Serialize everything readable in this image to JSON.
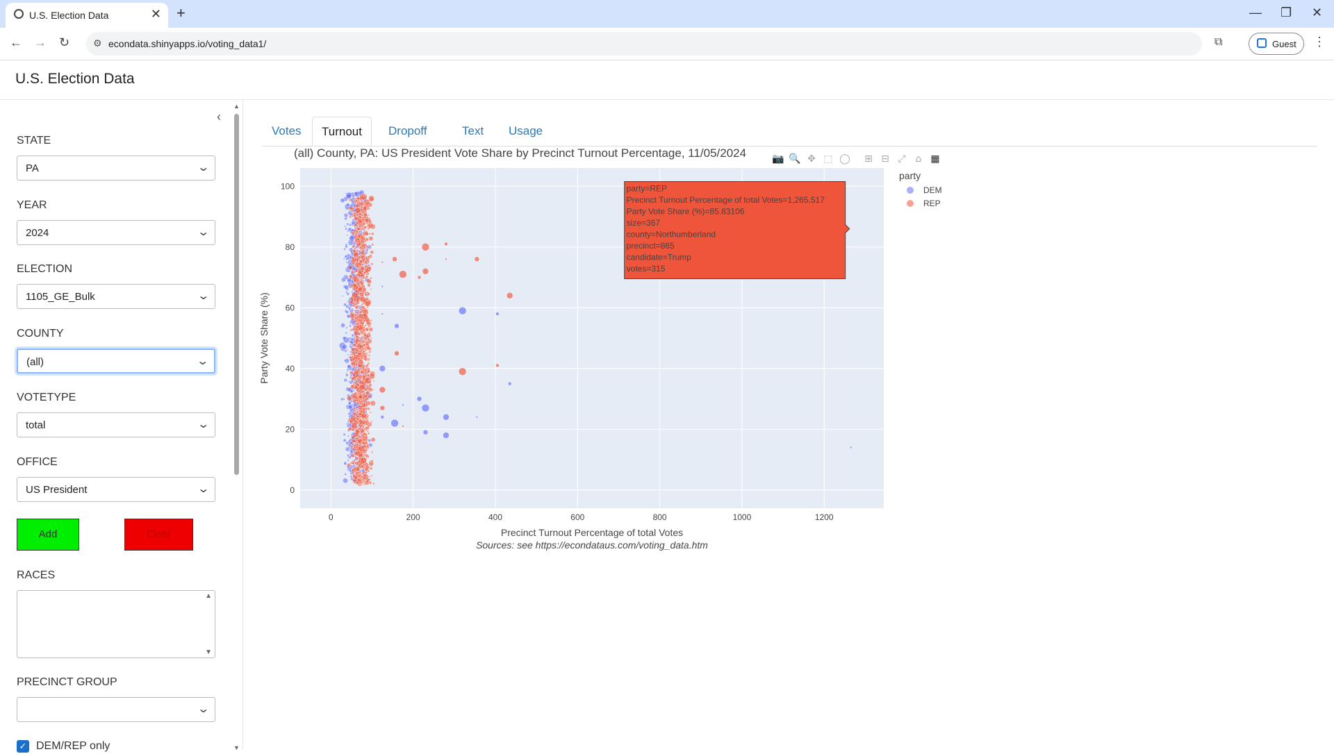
{
  "browser": {
    "tab_title": "U.S. Election Data",
    "url": "econdata.shinyapps.io/voting_data1/",
    "profile": "Guest"
  },
  "app": {
    "title": "U.S. Election Data"
  },
  "sidebar": {
    "state_label": "STATE",
    "state_value": "PA",
    "year_label": "YEAR",
    "year_value": "2024",
    "election_label": "ELECTION",
    "election_value": "1105_GE_Bulk",
    "county_label": "COUNTY",
    "county_value": "(all)",
    "votetype_label": "VOTETYPE",
    "votetype_value": "total",
    "office_label": "OFFICE",
    "office_value": "US President",
    "add_label": "Add",
    "clear_label": "Clear",
    "races_label": "RACES",
    "precinct_group_label": "PRECINCT GROUP",
    "precinct_group_value": "",
    "demrep_label": "DEM/REP only"
  },
  "tabs": [
    "Votes",
    "Turnout",
    "Dropoff",
    "Text",
    "Usage"
  ],
  "active_tab": "Turnout",
  "colors": {
    "dem": "#636efa",
    "rep": "#ef553b",
    "add": "#00ee00",
    "clear": "#ee0000",
    "plot_bg": "#e5ecf6"
  },
  "chart_data": {
    "type": "scatter",
    "title": "(all) County, PA: US President Vote Share by Precinct Turnout Percentage, 11/05/2024",
    "xlabel": "Precinct Turnout Percentage of total Votes",
    "ylabel": "Party Vote Share (%)",
    "caption": "Sources: see https://econdataus.com/voting_data.htm",
    "xlim": [
      -75,
      1345
    ],
    "ylim": [
      -6,
      106
    ],
    "xticks": [
      0,
      200,
      400,
      600,
      800,
      1000,
      1200
    ],
    "yticks": [
      0,
      20,
      40,
      60,
      80,
      100
    ],
    "grid": true,
    "legend_title": "party",
    "legend_position": "right",
    "series": [
      {
        "name": "DEM",
        "cluster": {
          "x_range": [
            40,
            82
          ],
          "y_range": [
            3,
            98
          ],
          "note": "dense vertical band of several thousand precincts"
        },
        "points": [
          [
            125,
            67
          ],
          [
            160,
            54
          ],
          [
            320,
            59
          ],
          [
            405,
            58
          ],
          [
            125,
            40
          ],
          [
            175,
            28
          ],
          [
            215,
            30
          ],
          [
            230,
            27
          ],
          [
            125,
            24
          ],
          [
            280,
            24
          ],
          [
            355,
            24
          ],
          [
            230,
            19
          ],
          [
            155,
            22
          ],
          [
            435,
            35
          ],
          [
            280,
            18
          ],
          [
            1265,
            14
          ]
        ]
      },
      {
        "name": "REP",
        "cluster": {
          "x_range": [
            55,
            92
          ],
          "y_range": [
            2,
            97
          ],
          "note": "dense vertical band of several thousand precincts"
        },
        "points": [
          [
            125,
            75
          ],
          [
            155,
            76
          ],
          [
            175,
            71
          ],
          [
            215,
            70
          ],
          [
            230,
            72
          ],
          [
            280,
            76
          ],
          [
            355,
            76
          ],
          [
            230,
            80
          ],
          [
            280,
            81
          ],
          [
            435,
            64
          ],
          [
            125,
            58
          ],
          [
            160,
            45
          ],
          [
            320,
            39
          ],
          [
            405,
            41
          ],
          [
            125,
            33
          ],
          [
            175,
            21
          ],
          [
            125,
            27
          ]
        ]
      }
    ],
    "hover": {
      "lines": [
        "party=REP",
        "Precinct Turnout Percentage of total Votes=1,265.517",
        "Party Vote Share (%)=85.83106",
        "size=367",
        "county=Northumberland",
        "precinct=865",
        "candidate=Trump",
        "votes=315"
      ],
      "anchor": [
        1265,
        86
      ]
    }
  }
}
